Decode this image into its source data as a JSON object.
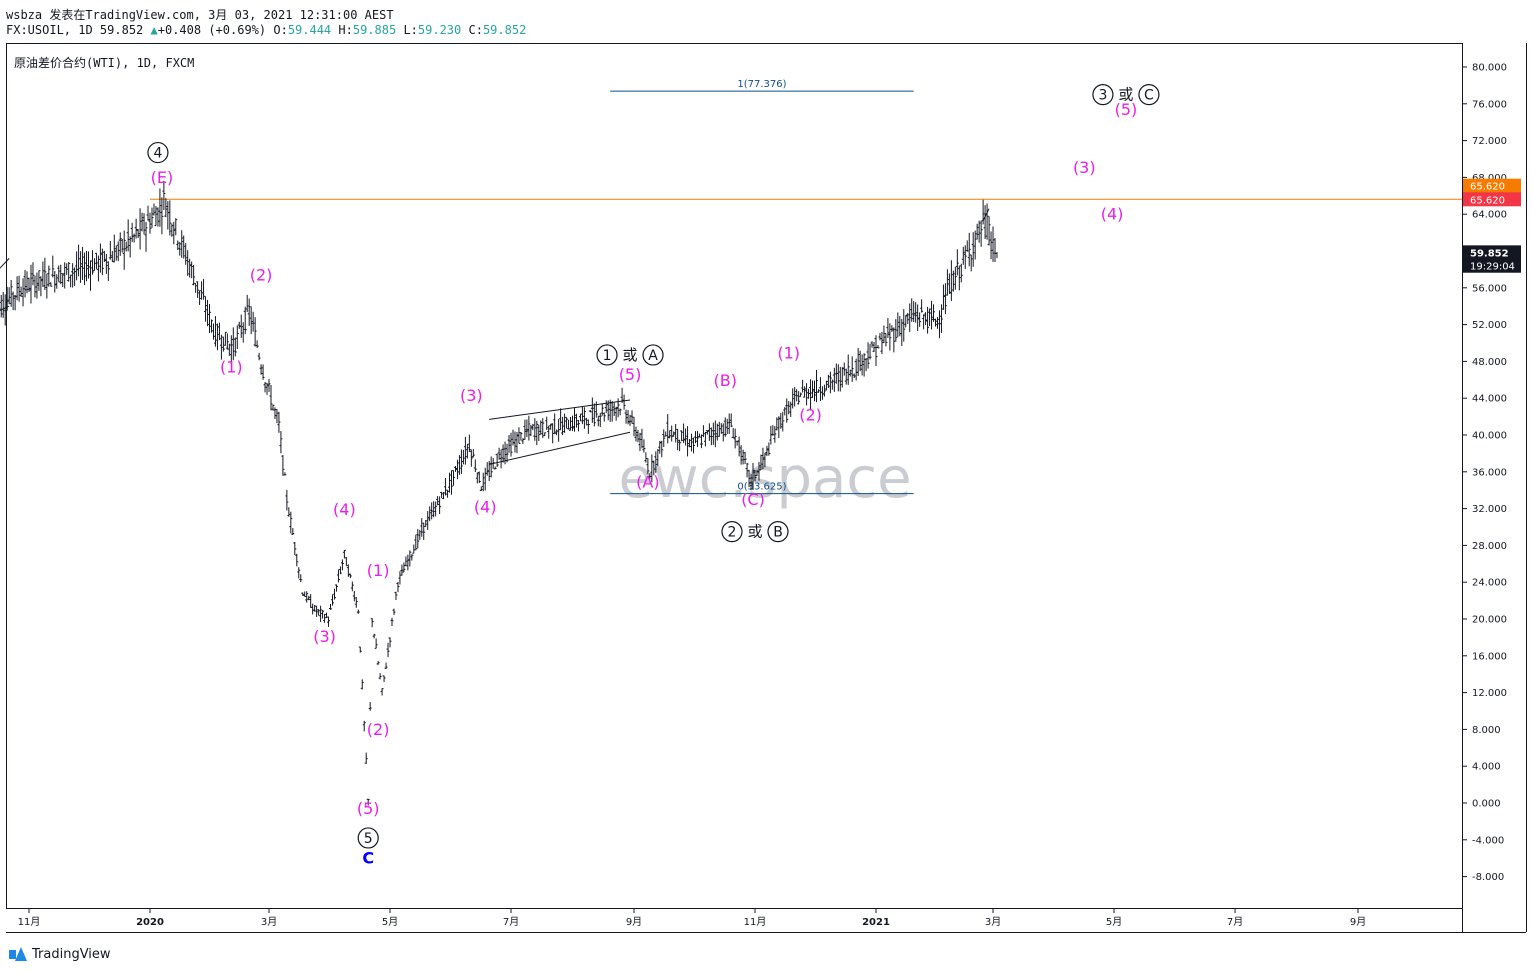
{
  "header": {
    "line1": "wsbza 发表在TradingView.com, 3月 03, 2021 12:31:00 AEST",
    "symbol": "FX:USOIL, 1D 59.852",
    "change_arrow": "▲",
    "change": "+0.408 (+0.69%)",
    "o_label": "O:",
    "o_value": "59.444",
    "h_label": "H:",
    "h_value": "59.885",
    "l_label": "L:",
    "l_value": "59.230",
    "c_label": "C:",
    "c_value": "59.852"
  },
  "symbol_title": "原油差价合约(WTI), 1D, FXCM",
  "watermark": "ewc.space",
  "footer": {
    "brand": "TradingView",
    "logo_icon": "tradingview-logo-icon"
  },
  "colors": {
    "wave_label": "#e91ee9",
    "circle_label": "#131722",
    "fib_line": "#0d4f8b",
    "resistance_line": "#f57c00",
    "price_badge_bg": "#131722",
    "orange_badge_bg": "#f57c00",
    "red_badge_bg": "#f23645",
    "c_label": "#0000ff"
  },
  "chart_data": {
    "type": "line",
    "title": "原油差价合约(WTI), 1D, FXCM",
    "ylim": [
      -10,
      82
    ],
    "y_ticks": [
      "80.000",
      "76.000",
      "72.000",
      "68.000",
      "64.000",
      "60.000",
      "56.000",
      "52.000",
      "48.000",
      "44.000",
      "40.000",
      "36.000",
      "32.000",
      "28.000",
      "24.000",
      "20.000",
      "16.000",
      "12.000",
      "8.000",
      "4.000",
      "0.000",
      "-4.000",
      "-8.000"
    ],
    "x_ticks": [
      "11月",
      "2020",
      "3月",
      "5月",
      "7月",
      "9月",
      "11月",
      "2021",
      "3月",
      "5月",
      "7月",
      "9月"
    ],
    "series": [
      {
        "values": [
          {
            "x": "2019-10-15",
            "y": 53.5
          },
          {
            "x": "2019-10-28",
            "y": 56.0
          },
          {
            "x": "2019-11-08",
            "y": 57.0
          },
          {
            "x": "2019-11-25",
            "y": 58.0
          },
          {
            "x": "2019-12-10",
            "y": 59.0
          },
          {
            "x": "2019-12-24",
            "y": 61.5
          },
          {
            "x": "2020-01-06",
            "y": 64.5
          },
          {
            "x": "2020-01-08",
            "y": 65.6
          },
          {
            "x": "2020-01-20",
            "y": 59.0
          },
          {
            "x": "2020-02-03",
            "y": 51.0
          },
          {
            "x": "2020-02-12",
            "y": 49.5
          },
          {
            "x": "2020-02-20",
            "y": 53.5
          },
          {
            "x": "2020-02-27",
            "y": 47.0
          },
          {
            "x": "2020-03-06",
            "y": 41.0
          },
          {
            "x": "2020-03-10",
            "y": 33.0
          },
          {
            "x": "2020-03-18",
            "y": 23.0
          },
          {
            "x": "2020-03-24",
            "y": 21.0
          },
          {
            "x": "2020-03-31",
            "y": 20.0
          },
          {
            "x": "2020-04-08",
            "y": 27.0
          },
          {
            "x": "2020-04-15",
            "y": 21.0
          },
          {
            "x": "2020-04-20",
            "y": 0.2
          },
          {
            "x": "2020-04-22",
            "y": 20.0
          },
          {
            "x": "2020-04-27",
            "y": 12.0
          },
          {
            "x": "2020-05-05",
            "y": 24.0
          },
          {
            "x": "2020-05-18",
            "y": 30.0
          },
          {
            "x": "2020-06-01",
            "y": 35.0
          },
          {
            "x": "2020-06-10",
            "y": 39.0
          },
          {
            "x": "2020-06-16",
            "y": 34.5
          },
          {
            "x": "2020-06-26",
            "y": 38.0
          },
          {
            "x": "2020-07-10",
            "y": 40.5
          },
          {
            "x": "2020-07-27",
            "y": 41.0
          },
          {
            "x": "2020-08-10",
            "y": 42.0
          },
          {
            "x": "2020-08-26",
            "y": 43.4
          },
          {
            "x": "2020-09-04",
            "y": 39.5
          },
          {
            "x": "2020-09-09",
            "y": 36.0
          },
          {
            "x": "2020-09-18",
            "y": 40.5
          },
          {
            "x": "2020-10-01",
            "y": 39.0
          },
          {
            "x": "2020-10-12",
            "y": 40.5
          },
          {
            "x": "2020-10-20",
            "y": 41.0
          },
          {
            "x": "2020-10-30",
            "y": 35.0
          },
          {
            "x": "2020-11-06",
            "y": 37.5
          },
          {
            "x": "2020-11-12",
            "y": 41.0
          },
          {
            "x": "2020-11-24",
            "y": 44.5
          },
          {
            "x": "2020-12-08",
            "y": 45.5
          },
          {
            "x": "2020-12-22",
            "y": 47.5
          },
          {
            "x": "2021-01-06",
            "y": 50.5
          },
          {
            "x": "2021-01-20",
            "y": 53.0
          },
          {
            "x": "2021-02-01",
            "y": 52.5
          },
          {
            "x": "2021-02-08",
            "y": 56.5
          },
          {
            "x": "2021-02-16",
            "y": 59.5
          },
          {
            "x": "2021-02-25",
            "y": 63.3
          },
          {
            "x": "2021-03-01",
            "y": 60.5
          },
          {
            "x": "2021-03-03",
            "y": 59.852
          }
        ]
      }
    ],
    "horizontal_lines": [
      {
        "y": 65.62,
        "color": "#f57c00"
      }
    ],
    "fib_lines": [
      {
        "label": "1(77.376)",
        "y": 77.376,
        "x_start": "2020-08-20",
        "x_end": "2021-01-20"
      },
      {
        "label": "0(33.625)",
        "y": 33.625,
        "x_start": "2020-08-20",
        "x_end": "2021-01-20"
      }
    ],
    "price_badges": [
      {
        "label": "65.620",
        "y": 67.1,
        "kind": "orange"
      },
      {
        "label": "65.620",
        "y": 65.62,
        "kind": "red"
      },
      {
        "label": "59.852",
        "y": 59.852,
        "kind": "dark"
      },
      {
        "label": "19:29:04",
        "y": 58.4,
        "kind": "dark"
      }
    ],
    "wave_labels": [
      {
        "text": "(E)",
        "x": "2020-01-07",
        "y": 67.4,
        "style": "magenta"
      },
      {
        "text": "(1)",
        "x": "2020-02-11",
        "y": 46.8,
        "style": "magenta"
      },
      {
        "text": "(2)",
        "x": "2020-02-26",
        "y": 56.8,
        "style": "magenta"
      },
      {
        "text": "(3)",
        "x": "2020-03-29",
        "y": 17.5,
        "style": "magenta"
      },
      {
        "text": "(4)",
        "x": "2020-04-08",
        "y": 31.3,
        "style": "magenta"
      },
      {
        "text": "(1)",
        "x": "2020-04-25",
        "y": 24.7,
        "style": "magenta"
      },
      {
        "text": "(2)",
        "x": "2020-04-25",
        "y": 7.4,
        "style": "magenta"
      },
      {
        "text": "(5)",
        "x": "2020-04-20",
        "y": -1.2,
        "style": "magenta"
      },
      {
        "text": "(3)",
        "x": "2020-06-11",
        "y": 43.7,
        "style": "magenta"
      },
      {
        "text": "(4)",
        "x": "2020-06-18",
        "y": 31.6,
        "style": "magenta"
      },
      {
        "text": "(5)",
        "x": "2020-08-30",
        "y": 46.0,
        "style": "magenta"
      },
      {
        "text": "(A)",
        "x": "2020-09-08",
        "y": 34.3,
        "style": "magenta"
      },
      {
        "text": "(B)",
        "x": "2020-10-17",
        "y": 45.3,
        "style": "magenta"
      },
      {
        "text": "(C)",
        "x": "2020-10-31",
        "y": 32.4,
        "style": "magenta"
      },
      {
        "text": "(1)",
        "x": "2020-11-18",
        "y": 48.3,
        "style": "magenta"
      },
      {
        "text": "(2)",
        "x": "2020-11-29",
        "y": 41.6,
        "style": "magenta"
      },
      {
        "text": "(3)",
        "x": "2021-04-16",
        "y": 68.5,
        "style": "magenta"
      },
      {
        "text": "(4)",
        "x": "2021-04-30",
        "y": 63.4,
        "style": "magenta"
      },
      {
        "text": "(5)",
        "x": "2021-05-07",
        "y": 74.8,
        "style": "magenta"
      },
      {
        "text": "C",
        "x": "2020-04-20",
        "y": -6.6,
        "style": "blue"
      }
    ],
    "circled_labels": [
      {
        "items": [
          "4"
        ],
        "connector": "",
        "x": "2020-01-05",
        "y": 70.7
      },
      {
        "items": [
          "5"
        ],
        "connector": "",
        "x": "2020-04-20",
        "y": -3.8
      },
      {
        "items": [
          "1",
          "A"
        ],
        "connector": "或",
        "x": "2020-08-30",
        "y": 48.7
      },
      {
        "items": [
          "2",
          "B"
        ],
        "connector": "或",
        "x": "2020-11-01",
        "y": 29.5
      },
      {
        "items": [
          "3",
          "C"
        ],
        "connector": "或",
        "x": "2021-05-07",
        "y": 77.0
      }
    ]
  }
}
